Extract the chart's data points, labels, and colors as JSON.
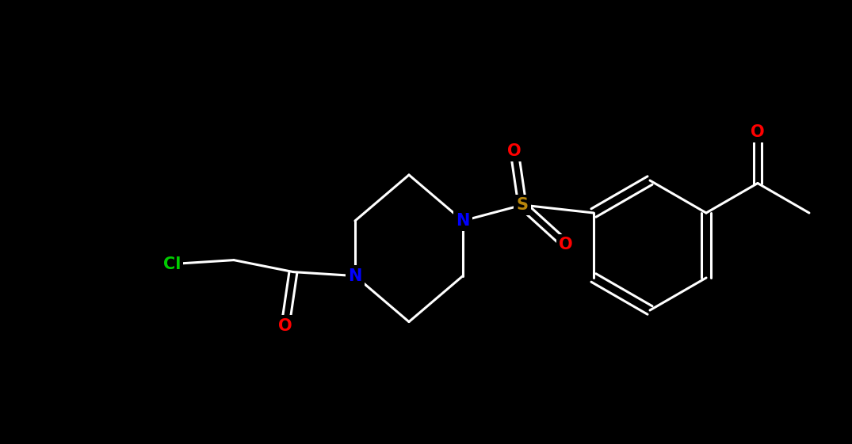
{
  "background_color": "#000000",
  "bond_color": "#ffffff",
  "atom_colors": {
    "O": "#ff0000",
    "S": "#b8860b",
    "N": "#0000ff",
    "Cl": "#00cc00",
    "C": "#ffffff"
  },
  "figsize": [
    10.75,
    5.61
  ],
  "dpi": 100,
  "linewidth": 2.2,
  "fontsize": 15
}
